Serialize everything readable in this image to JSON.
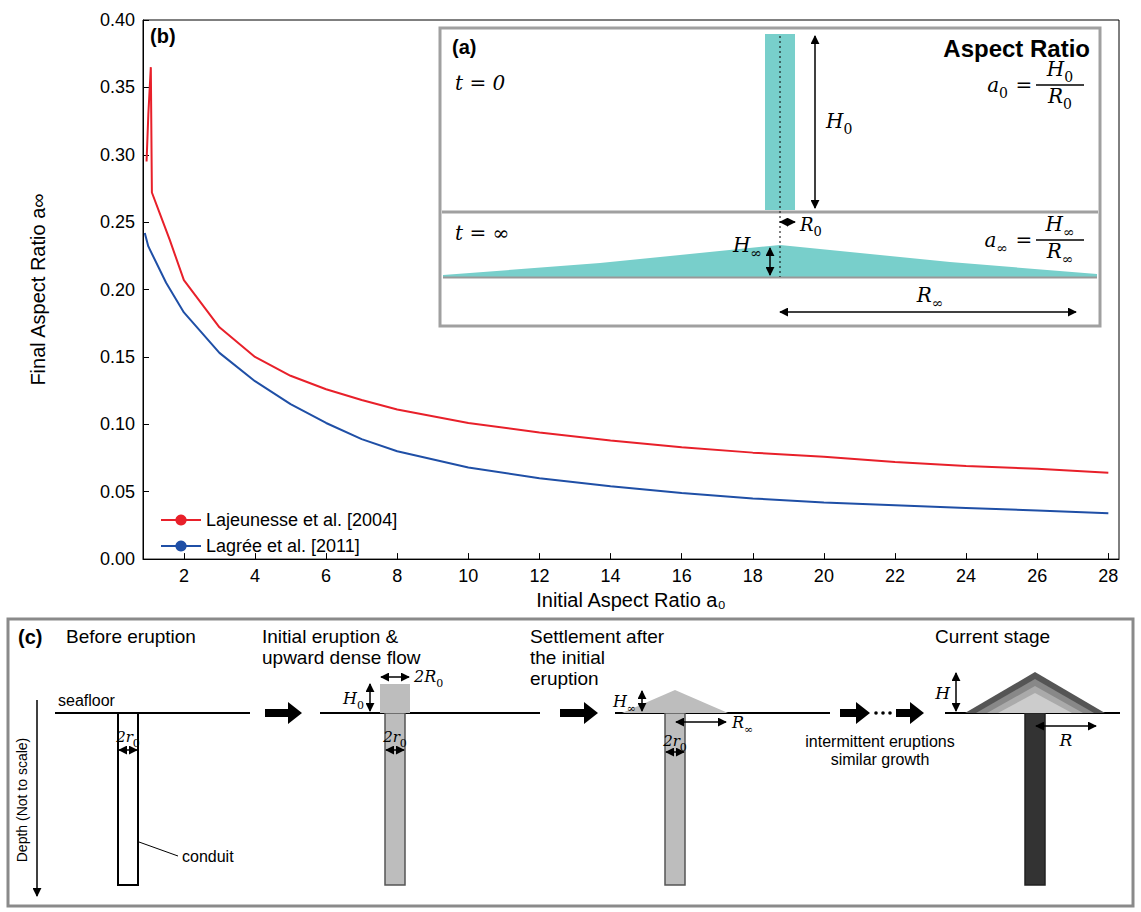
{
  "chart_data": {
    "type": "line",
    "annotations": [
      "(b)"
    ],
    "xlabel": "Initial Aspect Ratio a₀",
    "ylabel": "Final Aspect Ratio a∞",
    "xlim": [
      0.85,
      28.3
    ],
    "xticks": [
      2,
      4,
      6,
      8,
      10,
      12,
      14,
      16,
      18,
      20,
      22,
      24,
      26,
      28
    ],
    "ylim": [
      0,
      0.4
    ],
    "yticks": [
      {
        "value": 0,
        "label": "0.00"
      },
      {
        "value": 0.05,
        "label": "0.05"
      },
      {
        "value": 0.1,
        "label": "0.10"
      },
      {
        "value": 0.15,
        "label": "0.15"
      },
      {
        "value": 0.2,
        "label": "0.20"
      },
      {
        "value": 0.25,
        "label": "0.25"
      },
      {
        "value": 0.3,
        "label": "0.30"
      },
      {
        "value": 0.35,
        "label": "0.35"
      },
      {
        "value": 0.4,
        "label": "0.40"
      }
    ],
    "grid": false,
    "legend": "lower left",
    "series": [
      {
        "name": "Lajeunesse et al. [2004]",
        "color": "#e8202a",
        "x": [
          0.95,
          1.0,
          1.07,
          1.1,
          1.3,
          1.6,
          2,
          3,
          4,
          5,
          6,
          7,
          8,
          10,
          12,
          14,
          16,
          18,
          20,
          22,
          24,
          26,
          28
        ],
        "values": [
          0.295,
          0.33,
          0.365,
          0.272,
          0.258,
          0.237,
          0.207,
          0.172,
          0.15,
          0.136,
          0.126,
          0.118,
          0.111,
          0.101,
          0.094,
          0.088,
          0.083,
          0.079,
          0.076,
          0.072,
          0.069,
          0.067,
          0.064
        ]
      },
      {
        "name": "Lagrée et al. [2011]",
        "color": "#1f4fa6",
        "x": [
          0.9,
          1.0,
          1.5,
          2,
          3,
          4,
          5,
          6,
          7,
          8,
          10,
          12,
          14,
          16,
          18,
          20,
          22,
          24,
          26,
          28
        ],
        "values": [
          0.242,
          0.232,
          0.205,
          0.183,
          0.153,
          0.132,
          0.115,
          0.101,
          0.089,
          0.08,
          0.068,
          0.06,
          0.054,
          0.049,
          0.045,
          0.042,
          0.04,
          0.038,
          0.036,
          0.034
        ]
      }
    ]
  },
  "inset": {
    "label": "(a)",
    "title": "Aspect Ratio",
    "initial": {
      "time": "t = 0",
      "height": {
        "base": "H",
        "sub": "0"
      },
      "radius": {
        "base": "R",
        "sub": "0"
      },
      "ratio": {
        "lhs": {
          "base": "a",
          "sub": "0"
        },
        "relation": "=",
        "num": {
          "base": "H",
          "sub": "0"
        },
        "den": {
          "base": "R",
          "sub": "0"
        }
      }
    },
    "final": {
      "time": "t = ∞",
      "height": {
        "base": "H",
        "sub": "∞"
      },
      "radius": {
        "base": "R",
        "sub": "∞"
      },
      "ratio": {
        "lhs": {
          "base": "a",
          "sub": "∞"
        },
        "relation": "=",
        "num": {
          "base": "H",
          "sub": "∞"
        },
        "den": {
          "base": "R",
          "sub": "∞"
        }
      }
    }
  },
  "diagram": {
    "label": "(c)",
    "surface_label": "seafloor",
    "conduit_label": "conduit",
    "depth_label": "Depth (Not to scale)",
    "transition_label": "intermittent eruptions similar growth",
    "stages": [
      {
        "title": "Before eruption",
        "conduit_width": {
          "base": "2r",
          "sub": "0"
        }
      },
      {
        "title": "Initial eruption & upward dense flow",
        "height": {
          "base": "H",
          "sub": "0"
        },
        "width": {
          "base": "2R",
          "sub": "0"
        },
        "conduit_width": {
          "base": "2r",
          "sub": "0"
        }
      },
      {
        "title": "Settlement after the initial eruption",
        "height": {
          "base": "H",
          "sub": "∞"
        },
        "radius": {
          "base": "R",
          "sub": "∞"
        },
        "conduit_width": {
          "base": "2r",
          "sub": "0"
        }
      },
      {
        "title": "Current stage",
        "height": {
          "base": "H"
        },
        "radius": {
          "base": "R"
        }
      }
    ]
  }
}
